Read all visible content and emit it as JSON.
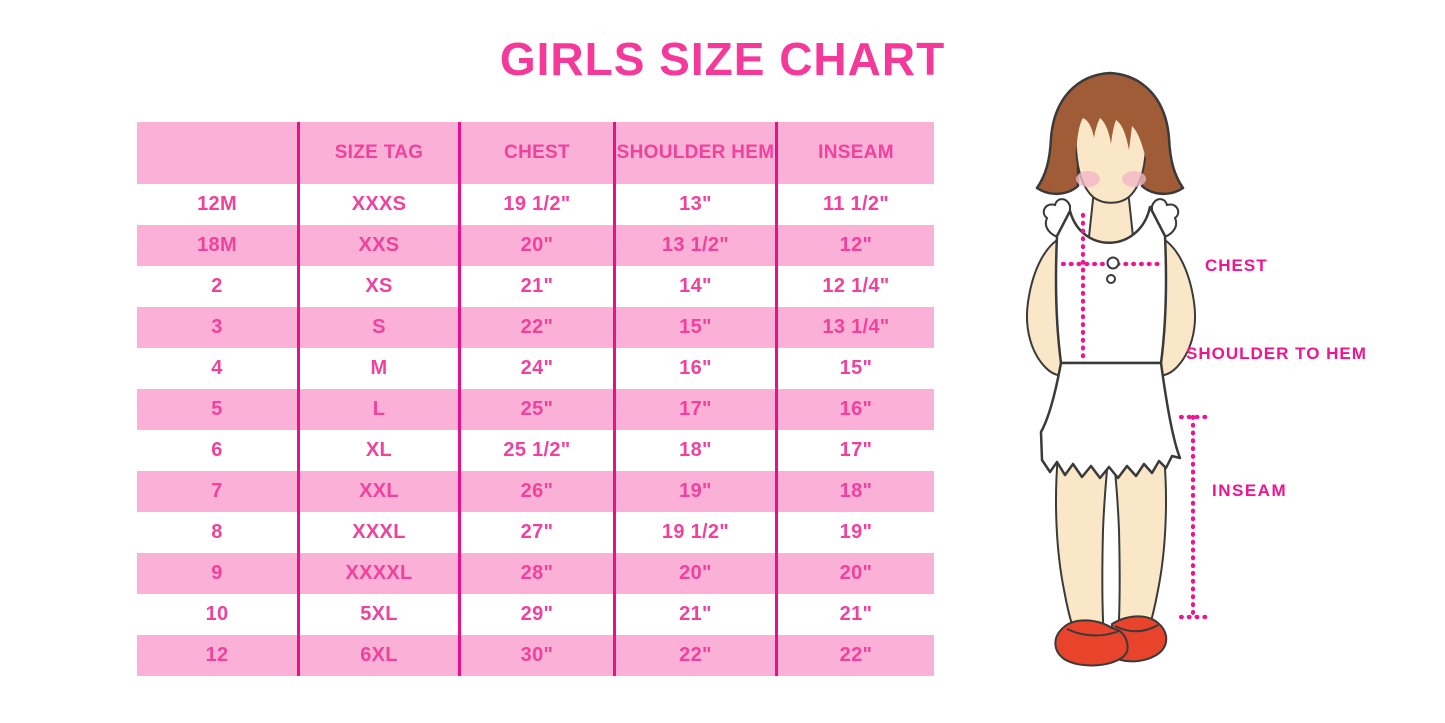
{
  "title": "GIRLS SIZE CHART",
  "colors": {
    "title_pink": "#F4399B",
    "table_text_pink": "#F0429C",
    "row_pink": "#FBB0D8",
    "grid_line_magenta": "#E9118A",
    "label_magenta": "#F0148F",
    "hair_brown": "#A05C36",
    "skin": "#FAE7C8",
    "blush": "#F3B9C6",
    "outline": "#3A3A3A",
    "shoe_red": "#E8432B",
    "dress_white": "#FFFFFF",
    "page_bg": "#FFFFFF"
  },
  "table": {
    "columns": [
      "",
      "SIZE TAG",
      "CHEST",
      "SHOULDER HEM",
      "INSEAM"
    ],
    "rows": [
      [
        "12M",
        "XXXS",
        "19 1/2\"",
        "13\"",
        "11 1/2\""
      ],
      [
        "18M",
        "XXS",
        "20\"",
        "13 1/2\"",
        "12\""
      ],
      [
        "2",
        "XS",
        "21\"",
        "14\"",
        "12 1/4\""
      ],
      [
        "3",
        "S",
        "22\"",
        "15\"",
        "13 1/4\""
      ],
      [
        "4",
        "M",
        "24\"",
        "16\"",
        "15\""
      ],
      [
        "5",
        "L",
        "25\"",
        "17\"",
        "16\""
      ],
      [
        "6",
        "XL",
        "25 1/2\"",
        "18\"",
        "17\""
      ],
      [
        "7",
        "XXL",
        "26\"",
        "19\"",
        "18\""
      ],
      [
        "8",
        "XXXL",
        "27\"",
        "19 1/2\"",
        "19\""
      ],
      [
        "9",
        "XXXXL",
        "28\"",
        "20\"",
        "20\""
      ],
      [
        "10",
        "5XL",
        "29\"",
        "21\"",
        "21\""
      ],
      [
        "12",
        "6XL",
        "30\"",
        "22\"",
        "22\""
      ]
    ]
  },
  "figure": {
    "labels": {
      "chest": "CHEST",
      "shoulder_to_hem": "SHOULDER TO HEM",
      "inseam": "INSEAM"
    }
  },
  "chart_data": {
    "type": "table",
    "title": "GIRLS SIZE CHART",
    "categories": [
      "",
      "SIZE TAG",
      "CHEST",
      "SHOULDER HEM",
      "INSEAM"
    ],
    "values": [
      [
        "12M",
        "XXXS",
        "19 1/2\"",
        "13\"",
        "11 1/2\""
      ],
      [
        "18M",
        "XXS",
        "20\"",
        "13 1/2\"",
        "12\""
      ],
      [
        "2",
        "XS",
        "21\"",
        "14\"",
        "12 1/4\""
      ],
      [
        "3",
        "S",
        "22\"",
        "15\"",
        "13 1/4\""
      ],
      [
        "4",
        "M",
        "24\"",
        "16\"",
        "15\""
      ],
      [
        "5",
        "L",
        "25\"",
        "17\"",
        "16\""
      ],
      [
        "6",
        "XL",
        "25 1/2\"",
        "18\"",
        "17\""
      ],
      [
        "7",
        "XXL",
        "26\"",
        "19\"",
        "18\""
      ],
      [
        "8",
        "XXXL",
        "27\"",
        "19 1/2\"",
        "19\""
      ],
      [
        "9",
        "XXXXL",
        "28\"",
        "20\"",
        "20\""
      ],
      [
        "10",
        "5XL",
        "29\"",
        "21\"",
        "21\""
      ],
      [
        "12",
        "6XL",
        "30\"",
        "22\"",
        "22\""
      ]
    ]
  }
}
